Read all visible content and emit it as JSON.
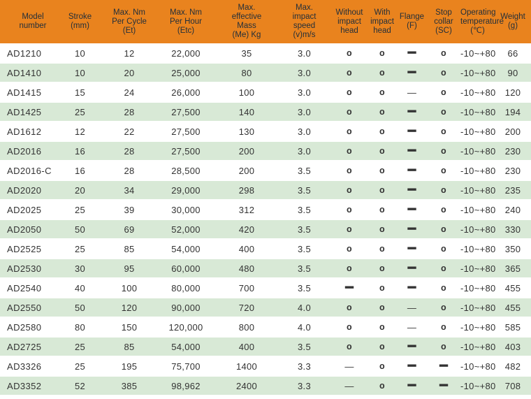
{
  "colors": {
    "header_bg": "#E9831E",
    "header_text": "#232F3A",
    "row_alt_bg": "#D8E9D6",
    "body_text": "#333333"
  },
  "table": {
    "columns": [
      {
        "id": "model",
        "label": "Model\nnumber"
      },
      {
        "id": "stroke",
        "label": "Stroke\n(mm)"
      },
      {
        "id": "max-nm-per-cycle",
        "label": "Max. Nm\nPer Cycle\n(Et)"
      },
      {
        "id": "max-nm-per-hour",
        "label": "Max. Nm\nPer Hour\n(Etc)"
      },
      {
        "id": "max-effective-mass",
        "label": "Max.\neffective\nMass\n(Me) Kg"
      },
      {
        "id": "max-impact-speed",
        "label": "Max.\nimpact\nspeed\n(v)m/s"
      },
      {
        "id": "without-impact-head",
        "label": "Without\nimpact\nhead"
      },
      {
        "id": "with-impact-head",
        "label": "With\nimpact\nhead"
      },
      {
        "id": "flange",
        "label": "Flange\n(F)"
      },
      {
        "id": "stop-collar",
        "label": "Stop\ncollar\n(SC)"
      },
      {
        "id": "operating-temperature",
        "label": "Operating\ntemperature\n(℃)"
      },
      {
        "id": "weight",
        "label": "Weight\n(g)"
      }
    ],
    "marks_legend": {
      "circle": "o",
      "dash_bold": "━",
      "dash_thin": "—"
    },
    "rows": [
      [
        "AD1210",
        "10",
        "12",
        "22,000",
        "35",
        "3.0",
        "o",
        "o",
        "━",
        "o",
        "-10~+80",
        "66"
      ],
      [
        "AD1410",
        "10",
        "20",
        "25,000",
        "80",
        "3.0",
        "o",
        "o",
        "━",
        "o",
        "-10~+80",
        "90"
      ],
      [
        "AD1415",
        "15",
        "24",
        "26,000",
        "100",
        "3.0",
        "o",
        "o",
        "—",
        "o",
        "-10~+80",
        "120"
      ],
      [
        "AD1425",
        "25",
        "28",
        "27,500",
        "140",
        "3.0",
        "o",
        "o",
        "━",
        "o",
        "-10~+80",
        "194"
      ],
      [
        "AD1612",
        "12",
        "22",
        "27,500",
        "130",
        "3.0",
        "o",
        "o",
        "━",
        "o",
        "-10~+80",
        "200"
      ],
      [
        "AD2016",
        "16",
        "28",
        "27,500",
        "200",
        "3.0",
        "o",
        "o",
        "━",
        "o",
        "-10~+80",
        "230"
      ],
      [
        "AD2016-C",
        "16",
        "28",
        "28,500",
        "200",
        "3.5",
        "o",
        "o",
        "━",
        "o",
        "-10~+80",
        "230"
      ],
      [
        "AD2020",
        "20",
        "34",
        "29,000",
        "298",
        "3.5",
        "o",
        "o",
        "━",
        "o",
        "-10~+80",
        "235"
      ],
      [
        "AD2025",
        "25",
        "39",
        "30,000",
        "312",
        "3.5",
        "o",
        "o",
        "━",
        "o",
        "-10~+80",
        "240"
      ],
      [
        "AD2050",
        "50",
        "69",
        "52,000",
        "420",
        "3.5",
        "o",
        "o",
        "━",
        "o",
        "-10~+80",
        "330"
      ],
      [
        "AD2525",
        "25",
        "85",
        "54,000",
        "400",
        "3.5",
        "o",
        "o",
        "━",
        "o",
        "-10~+80",
        "350"
      ],
      [
        "AD2530",
        "30",
        "95",
        "60,000",
        "480",
        "3.5",
        "o",
        "o",
        "━",
        "o",
        "-10~+80",
        "365"
      ],
      [
        "AD2540",
        "40",
        "100",
        "80,000",
        "700",
        "3.5",
        "━",
        "o",
        "━",
        "o",
        "-10~+80",
        "455"
      ],
      [
        "AD2550",
        "50",
        "120",
        "90,000",
        "720",
        "4.0",
        "o",
        "o",
        "—",
        "o",
        "-10~+80",
        "455"
      ],
      [
        "AD2580",
        "80",
        "150",
        "120,000",
        "800",
        "4.0",
        "o",
        "o",
        "—",
        "o",
        "-10~+80",
        "585"
      ],
      [
        "AD2725",
        "25",
        "85",
        "54,000",
        "400",
        "3.5",
        "o",
        "o",
        "━",
        "o",
        "-10~+80",
        "403"
      ],
      [
        "AD3326",
        "25",
        "195",
        "75,700",
        "1400",
        "3.3",
        "—",
        "o",
        "━",
        "━",
        "-10~+80",
        "482"
      ],
      [
        "AD3352",
        "52",
        "385",
        "98,962",
        "2400",
        "3.3",
        "—",
        "o",
        "━",
        "━",
        "-10~+80",
        "708"
      ]
    ]
  }
}
